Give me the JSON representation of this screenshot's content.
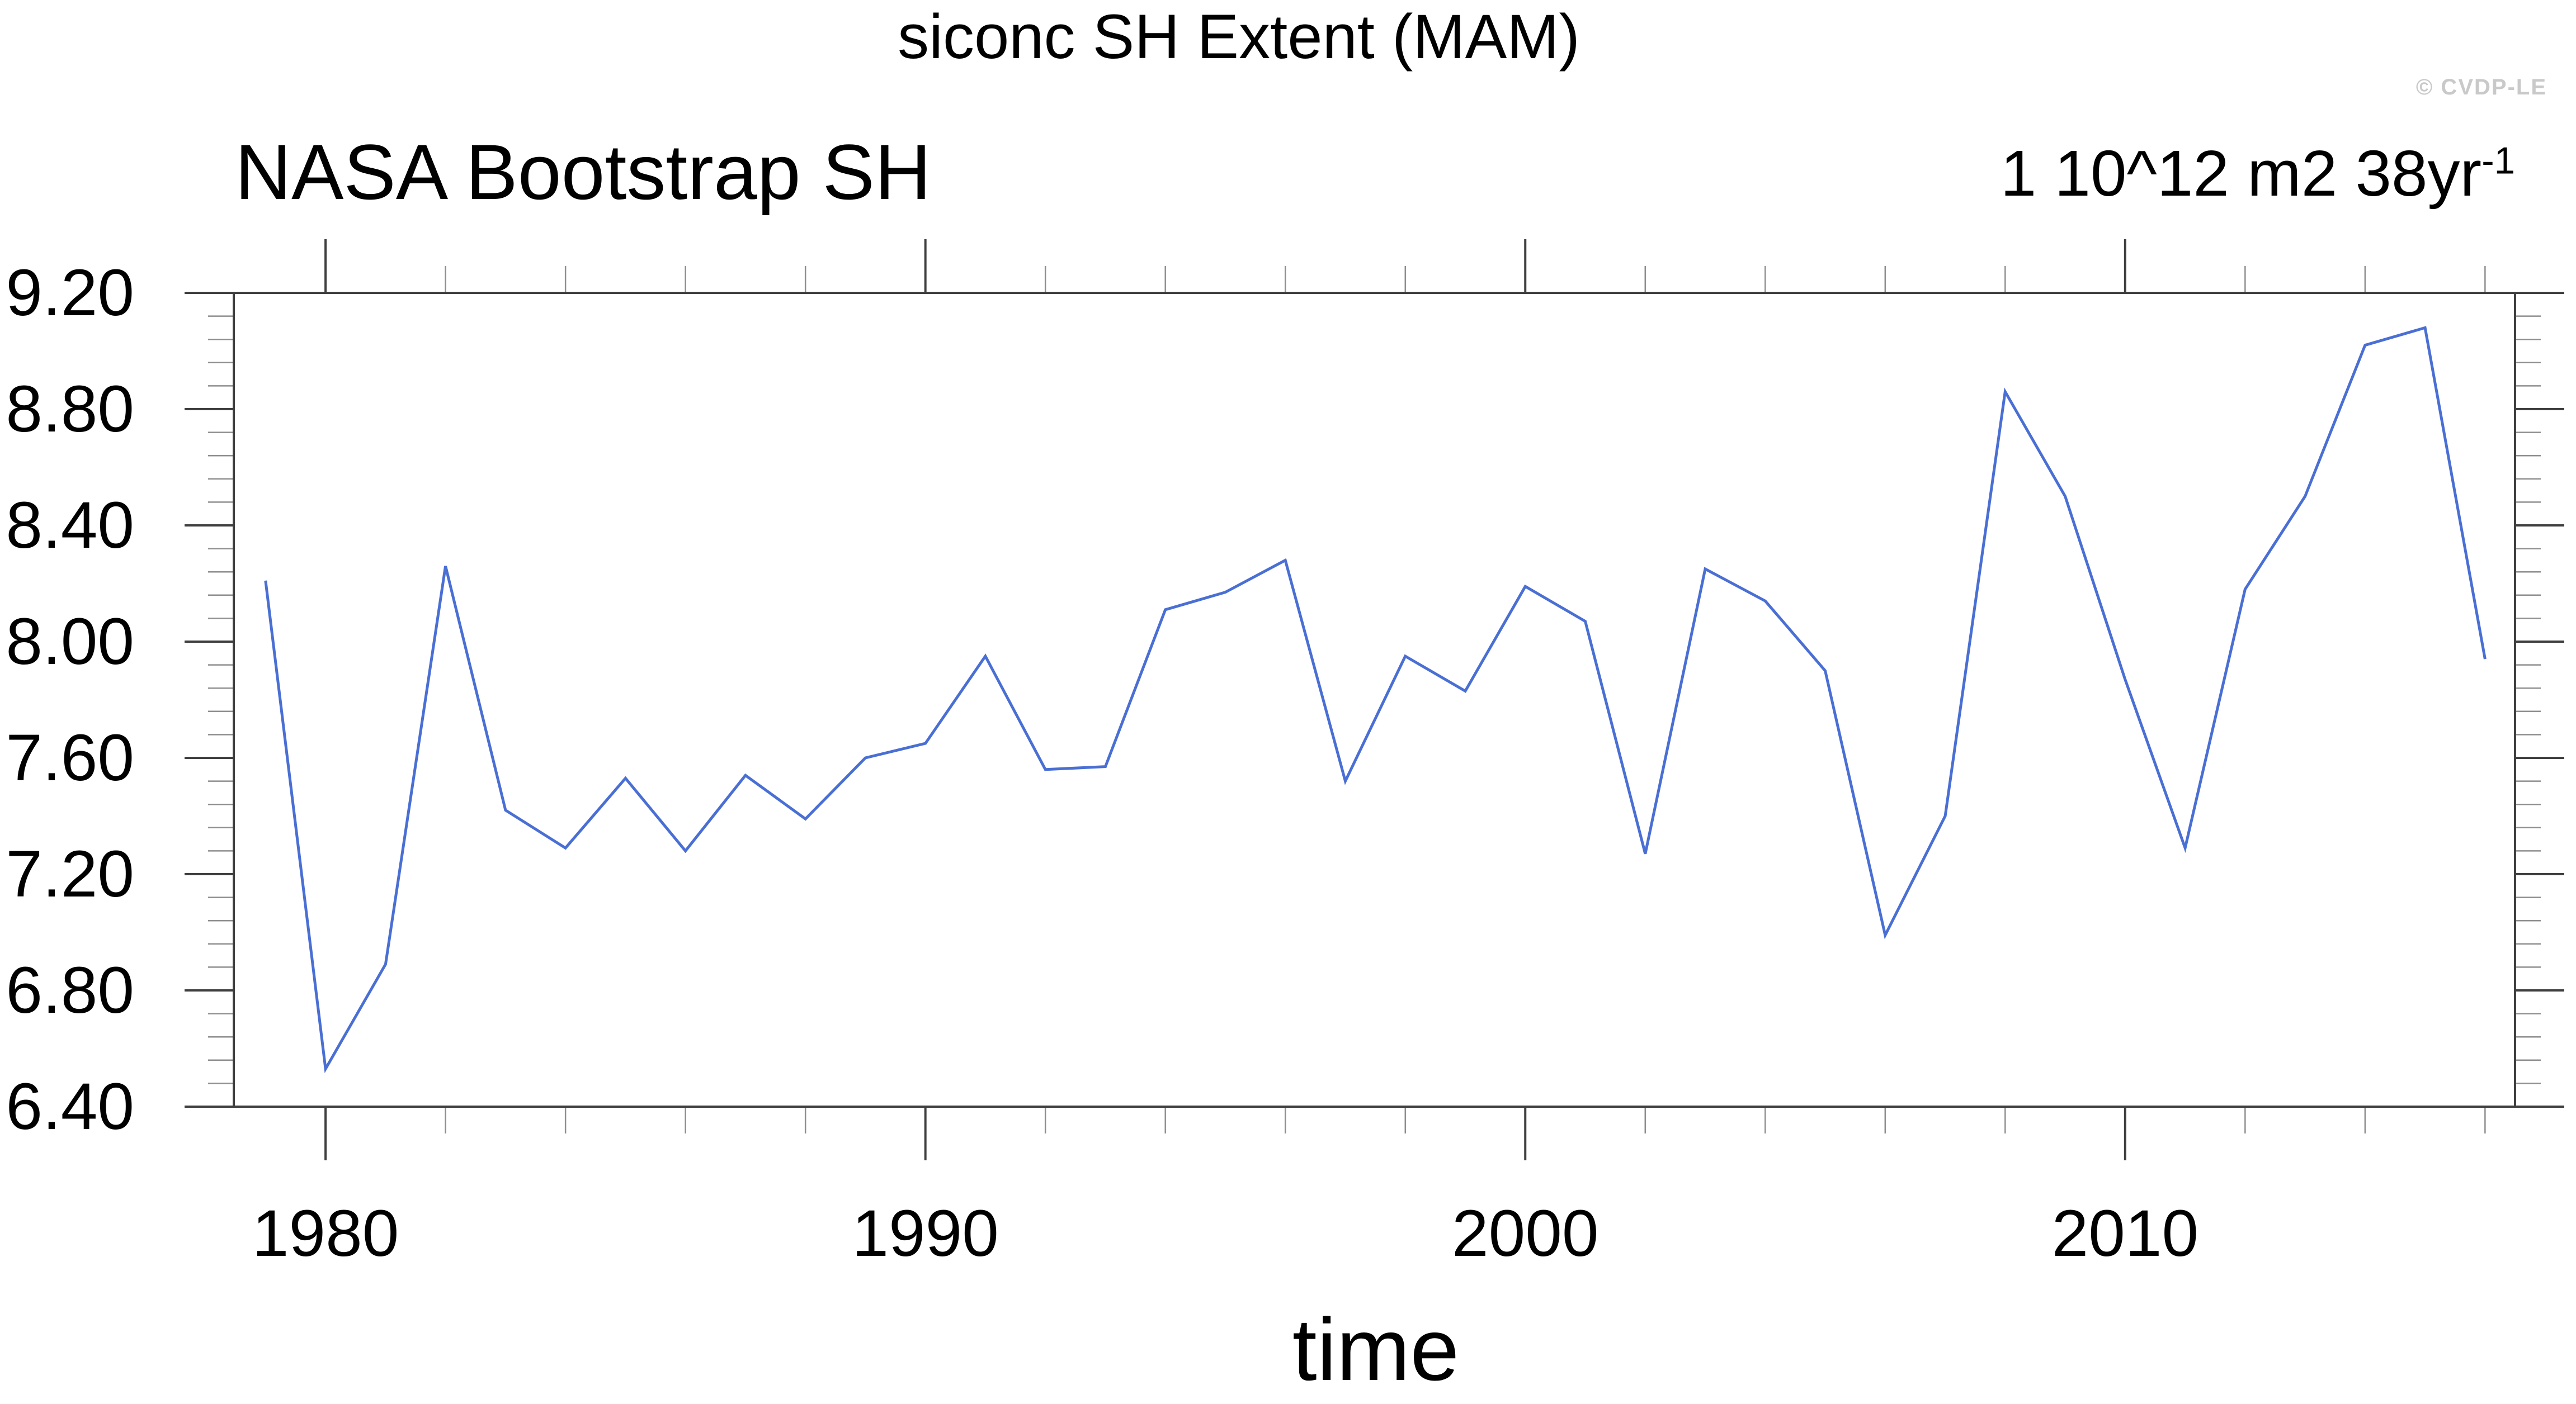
{
  "header": {
    "title": "siconc SH Extent (MAM)",
    "left_label": "NASA Bootstrap SH",
    "units_text": "1 10^12 m2 38yr",
    "units_exponent": "-1",
    "watermark": "© CVDP-LE"
  },
  "chart_data": {
    "type": "line",
    "title": "siconc SH Extent (MAM)",
    "series_name": "NASA Bootstrap SH",
    "trend_label": "1 10^12 m2 38yr^-1",
    "xlabel": "time",
    "ylabel": "",
    "grid": false,
    "legend": "none",
    "line_color": "#4a6fd4",
    "x": [
      1979,
      1980,
      1981,
      1982,
      1983,
      1984,
      1985,
      1986,
      1987,
      1988,
      1989,
      1990,
      1991,
      1992,
      1993,
      1994,
      1995,
      1996,
      1997,
      1998,
      1999,
      2000,
      2001,
      2002,
      2003,
      2004,
      2005,
      2006,
      2007,
      2008,
      2009,
      2010,
      2011,
      2012,
      2013,
      2014,
      2015,
      2016
    ],
    "values": [
      8.21,
      6.53,
      6.89,
      8.26,
      7.42,
      7.29,
      7.53,
      7.28,
      7.54,
      7.39,
      7.6,
      7.65,
      7.95,
      7.56,
      7.57,
      8.11,
      8.17,
      8.28,
      7.52,
      7.95,
      7.83,
      8.19,
      8.07,
      7.27,
      8.25,
      8.14,
      7.9,
      6.99,
      7.4,
      8.86,
      8.5,
      7.87,
      7.29,
      8.18,
      8.5,
      9.02,
      9.08,
      7.94
    ],
    "xlim": [
      1978.47,
      2016.5
    ],
    "ylim": [
      6.4,
      9.2
    ],
    "xticks": [
      1980,
      1990,
      2000,
      2010
    ],
    "xtick_labels": [
      "1980",
      "1990",
      "2000",
      "2010"
    ],
    "x_minor_step": 2,
    "yticks": [
      6.4,
      6.8,
      7.2,
      7.6,
      8.0,
      8.4,
      8.8,
      9.2
    ],
    "ytick_labels": [
      "6.40",
      "6.80",
      "7.20",
      "7.60",
      "8.00",
      "8.40",
      "8.80",
      "9.20"
    ],
    "y_minor_step": 0.08
  }
}
